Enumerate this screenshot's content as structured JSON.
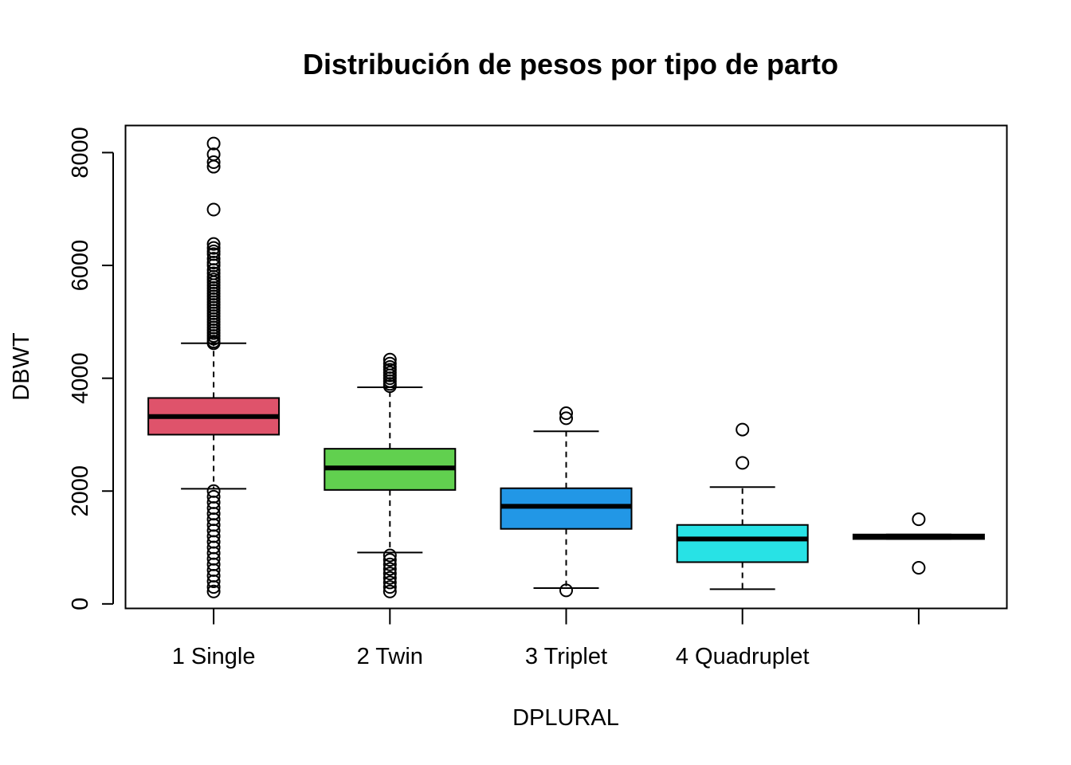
{
  "chart_data": {
    "type": "boxplot",
    "title": "Distribución de pesos por tipo de parto",
    "xlabel": "DPLURAL",
    "ylabel": "DBWT",
    "ylim": [
      -80,
      8480
    ],
    "yticks": [
      0,
      2000,
      4000,
      6000,
      8000
    ],
    "categories": [
      "1 Single",
      "2 Twin",
      "3 Triplet",
      "4 Quadruplet",
      ""
    ],
    "grid": false,
    "legend": "none",
    "boxes": [
      {
        "category": "1 Single",
        "color": "#df536b",
        "whisker_low": 2040,
        "q1": 3000,
        "median": 3320,
        "q3": 3650,
        "whisker_high": 4620,
        "outliers_high": [
          4620,
          4650,
          4700,
          4750,
          4800,
          4850,
          4900,
          4950,
          5000,
          5050,
          5100,
          5150,
          5200,
          5250,
          5300,
          5350,
          5400,
          5450,
          5500,
          5550,
          5600,
          5650,
          5700,
          5750,
          5800,
          5860,
          5920,
          6000,
          6050,
          6120,
          6200,
          6250,
          6310,
          6380,
          6990,
          7750,
          7830,
          7970,
          8160
        ],
        "outliers_low": [
          220,
          300,
          400,
          500,
          600,
          700,
          800,
          900,
          1000,
          1100,
          1200,
          1300,
          1400,
          1500,
          1600,
          1700,
          1800,
          1900,
          2000
        ]
      },
      {
        "category": "2 Twin",
        "color": "#61d04f",
        "whisker_low": 910,
        "q1": 2020,
        "median": 2410,
        "q3": 2750,
        "whisker_high": 3840,
        "outliers_high": [
          3860,
          3900,
          3950,
          4000,
          4050,
          4100,
          4150,
          4200,
          4260,
          4330
        ],
        "outliers_low": [
          220,
          300,
          380,
          460,
          540,
          620,
          700,
          780,
          860
        ]
      },
      {
        "category": "3 Triplet",
        "color": "#2297e6",
        "whisker_low": 280,
        "q1": 1330,
        "median": 1730,
        "q3": 2050,
        "whisker_high": 3060,
        "outliers_high": [
          3290,
          3380
        ],
        "outliers_low": [
          240
        ]
      },
      {
        "category": "4 Quadruplet",
        "color": "#28e2e5",
        "whisker_low": 260,
        "q1": 740,
        "median": 1150,
        "q3": 1400,
        "whisker_high": 2070,
        "outliers_high": [
          2500,
          3090
        ],
        "outliers_low": []
      },
      {
        "category": "",
        "color": "#cd0bbc",
        "whisker_low": 1150,
        "q1": 1150,
        "median": 1190,
        "q3": 1230,
        "whisker_high": 1230,
        "outliers_high": [
          1500
        ],
        "outliers_low": [
          640
        ]
      }
    ]
  }
}
